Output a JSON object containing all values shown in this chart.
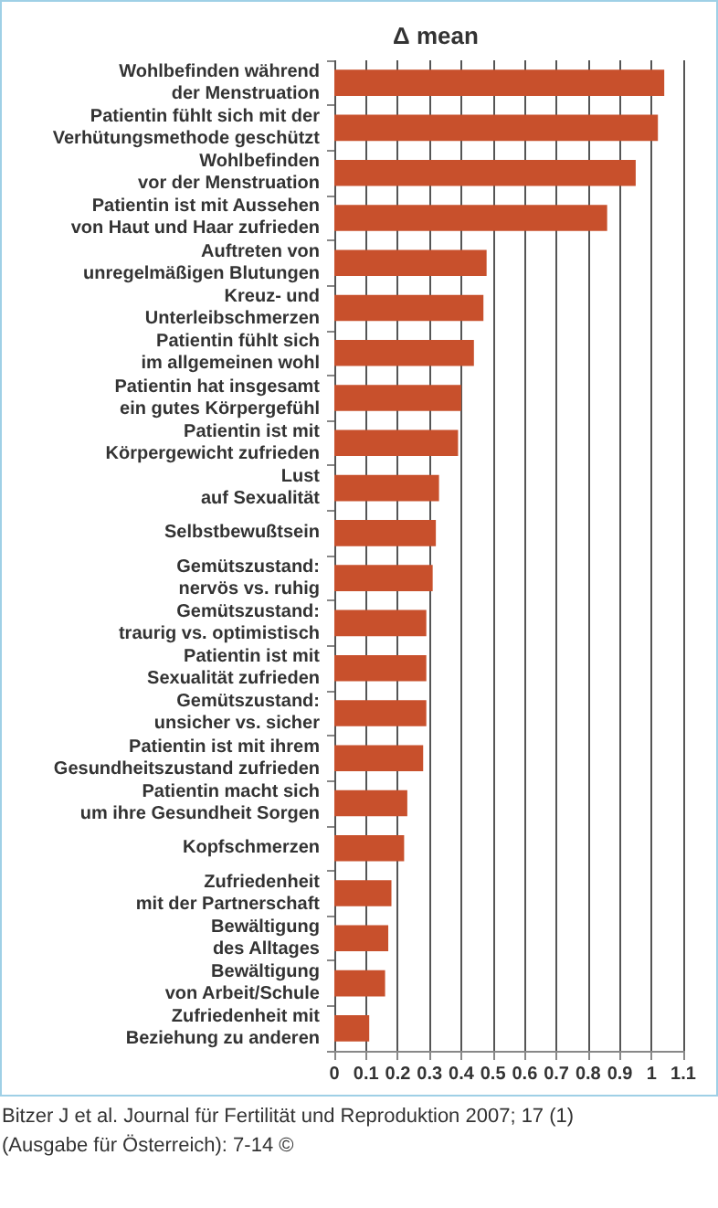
{
  "chart_data": {
    "type": "bar",
    "orientation": "horizontal",
    "title": "Δ mean",
    "categories": [
      "Wohlbefinden während\nder Menstruation",
      "Patientin fühlt sich mit der\nVerhütungsmethode geschützt",
      "Wohlbefinden\nvor der Menstruation",
      "Patientin ist mit Aussehen\nvon Haut und Haar zufrieden",
      "Auftreten von\nunregelmäßigen Blutungen",
      "Kreuz- und\nUnterleibschmerzen",
      "Patientin fühlt sich\nim allgemeinen wohl",
      "Patientin hat insgesamt\nein gutes Körpergefühl",
      "Patientin ist mit\nKörpergewicht zufrieden",
      "Lust\nauf Sexualität",
      "Selbstbewußtsein",
      "Gemütszustand:\nnervös vs. ruhig",
      "Gemütszustand:\ntraurig vs. optimistisch",
      "Patientin ist mit\nSexualität zufrieden",
      "Gemütszustand:\nunsicher vs. sicher",
      "Patientin ist mit ihrem\nGesundheitszustand zufrieden",
      "Patientin macht sich\num ihre Gesundheit Sorgen",
      "Kopfschmerzen",
      "Zufriedenheit\nmit der Partnerschaft",
      "Bewältigung\ndes Alltages",
      "Bewältigung\nvon Arbeit/Schule",
      "Zufriedenheit mit\nBeziehung zu anderen"
    ],
    "values": [
      1.04,
      1.02,
      0.95,
      0.86,
      0.48,
      0.47,
      0.44,
      0.4,
      0.39,
      0.33,
      0.32,
      0.31,
      0.29,
      0.29,
      0.29,
      0.28,
      0.23,
      0.22,
      0.18,
      0.17,
      0.16,
      0.11
    ],
    "color": "#c8502c",
    "xlim": [
      0,
      1.1
    ],
    "xticks": [
      0,
      0.1,
      0.2,
      0.3,
      0.4,
      0.5,
      0.6,
      0.7,
      0.8,
      0.9,
      1,
      1.1
    ],
    "grid": "x",
    "annotations": [
      "Bitzer J et al. Journal für Fertilität und Reproduktion 2007; 17 (1)\n(Ausgabe für Österreich): 7-14 ©"
    ]
  }
}
